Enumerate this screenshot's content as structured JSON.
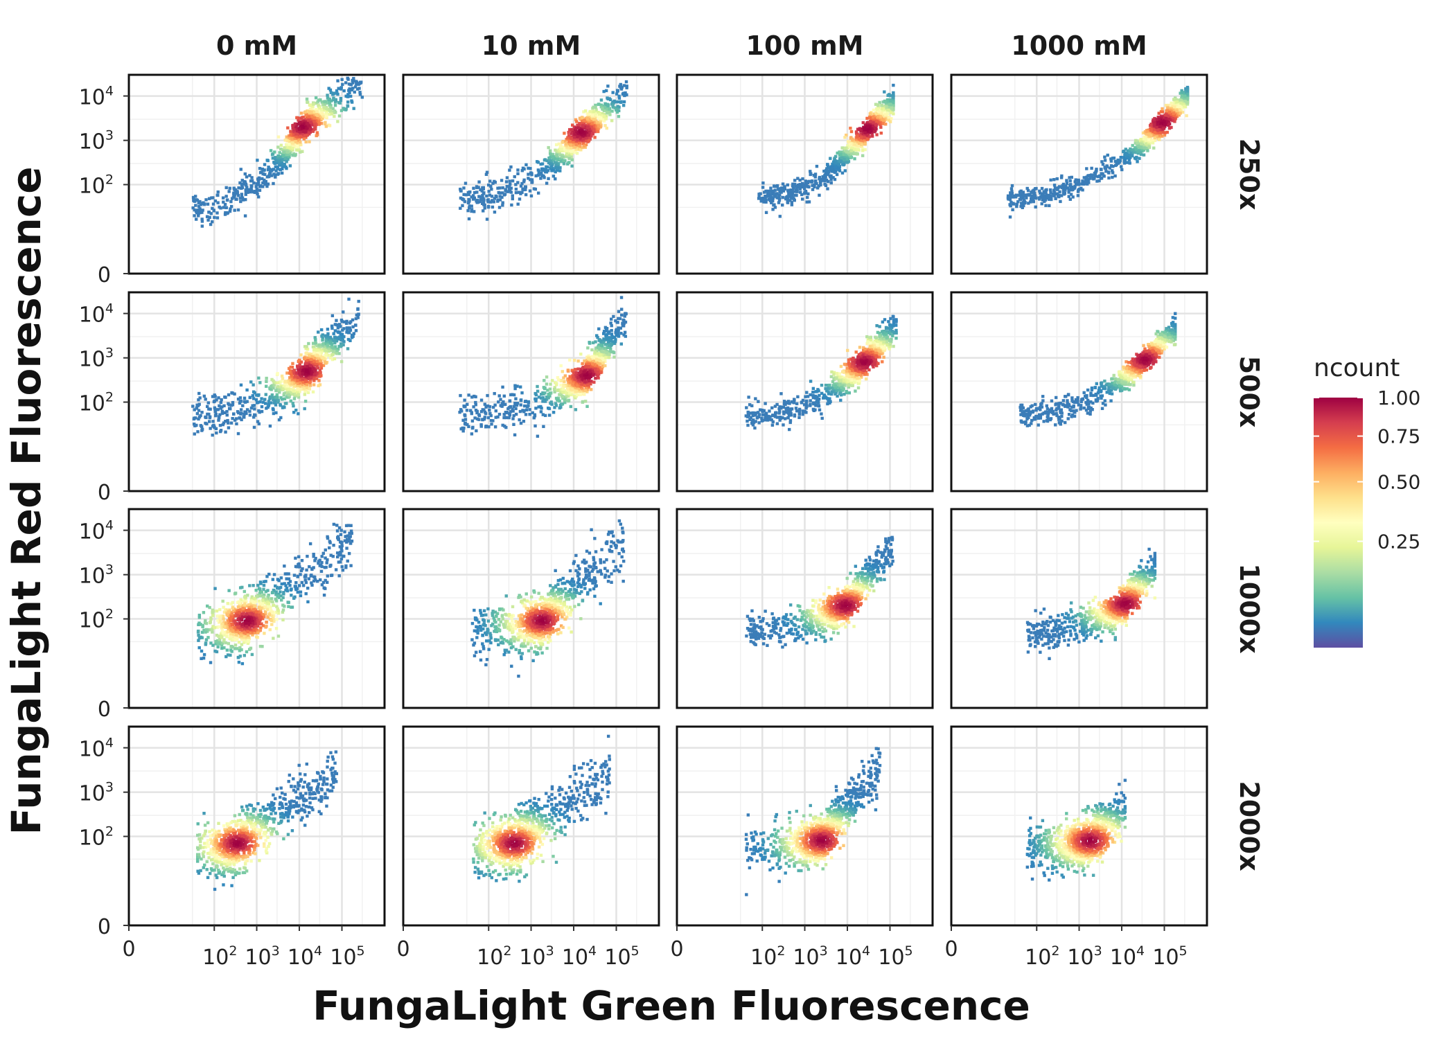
{
  "chart_data": {
    "type": "heatmap",
    "subtype": "hexbin-facet-grid",
    "xlabel": "FungaLight Green Fluorescence",
    "ylabel": "FungaLight Red Fluorescence",
    "x_scale": "pseudo-log",
    "y_scale": "pseudo-log",
    "xlim": [
      0,
      1000000
    ],
    "ylim": [
      0,
      30000
    ],
    "x_ticks": [
      {
        "value": 0,
        "base": "0",
        "exp": ""
      },
      {
        "value": 100,
        "base": "10",
        "exp": "2"
      },
      {
        "value": 1000,
        "base": "10",
        "exp": "3"
      },
      {
        "value": 10000,
        "base": "10",
        "exp": "4"
      },
      {
        "value": 100000,
        "base": "10",
        "exp": "5"
      }
    ],
    "y_ticks": [
      {
        "value": 0,
        "base": "0",
        "exp": ""
      },
      {
        "value": 100,
        "base": "10",
        "exp": "2"
      },
      {
        "value": 1000,
        "base": "10",
        "exp": "3"
      },
      {
        "value": 10000,
        "base": "10",
        "exp": "4"
      }
    ],
    "col_facets": [
      "0 mM",
      "10 mM",
      "100 mM",
      "1000 mM"
    ],
    "row_facets": [
      "250x",
      "500x",
      "1000x",
      "2000x"
    ],
    "grid": true,
    "legend": {
      "title": "ncount",
      "position": "right",
      "breaks": [
        "1.00",
        "0.75",
        "0.50",
        "0.25"
      ],
      "break_values": [
        1.0,
        0.75,
        0.5,
        0.25
      ],
      "colorscale": [
        "#5e4fa2",
        "#3288bd",
        "#66c2a5",
        "#abdda4",
        "#e6f598",
        "#ffffbf",
        "#fee08b",
        "#fdae61",
        "#f46d43",
        "#d53e4f",
        "#9e0142"
      ]
    },
    "panels": [
      {
        "row": "250x",
        "col": "0 mM",
        "x_range": [
          30,
          300000
        ],
        "y_range": [
          8,
          20000
        ],
        "peak": [
          12000,
          2000
        ],
        "spread": 0.18
      },
      {
        "row": "250x",
        "col": "10 mM",
        "x_range": [
          20,
          180000
        ],
        "y_range": [
          0,
          13000
        ],
        "peak": [
          15000,
          1500
        ],
        "spread": 0.18
      },
      {
        "row": "250x",
        "col": "100 mM",
        "x_range": [
          80,
          120000
        ],
        "y_range": [
          0,
          7000
        ],
        "peak": [
          30000,
          1800
        ],
        "spread": 0.14
      },
      {
        "row": "250x",
        "col": "1000 mM",
        "x_range": [
          20,
          350000
        ],
        "y_range": [
          0,
          10000
        ],
        "peak": [
          90000,
          2500
        ],
        "spread": 0.12
      },
      {
        "row": "500x",
        "col": "0 mM",
        "x_range": [
          30,
          250000
        ],
        "y_range": [
          0,
          9000
        ],
        "peak": [
          15000,
          500
        ],
        "spread": 0.25
      },
      {
        "row": "500x",
        "col": "10 mM",
        "x_range": [
          20,
          170000
        ],
        "y_range": [
          0,
          8000
        ],
        "peak": [
          20000,
          400
        ],
        "spread": 0.22
      },
      {
        "row": "500x",
        "col": "100 mM",
        "x_range": [
          40,
          140000
        ],
        "y_range": [
          0,
          5000
        ],
        "peak": [
          25000,
          800
        ],
        "spread": 0.16
      },
      {
        "row": "500x",
        "col": "1000 mM",
        "x_range": [
          40,
          180000
        ],
        "y_range": [
          0,
          4500
        ],
        "peak": [
          35000,
          900
        ],
        "spread": 0.14
      },
      {
        "row": "1000x",
        "col": "0 mM",
        "x_range": [
          40,
          180000
        ],
        "y_range": [
          0,
          6000
        ],
        "peak": [
          600,
          90
        ],
        "spread": 0.3
      },
      {
        "row": "1000x",
        "col": "10 mM",
        "x_range": [
          40,
          150000
        ],
        "y_range": [
          0,
          4500
        ],
        "peak": [
          1800,
          90
        ],
        "spread": 0.3
      },
      {
        "row": "1000x",
        "col": "100 mM",
        "x_range": [
          40,
          120000
        ],
        "y_range": [
          0,
          4000
        ],
        "peak": [
          9000,
          200
        ],
        "spread": 0.2
      },
      {
        "row": "1000x",
        "col": "1000 mM",
        "x_range": [
          60,
          60000
        ],
        "y_range": [
          0,
          1600
        ],
        "peak": [
          12000,
          220
        ],
        "spread": 0.2
      },
      {
        "row": "2000x",
        "col": "0 mM",
        "x_range": [
          40,
          80000
        ],
        "y_range": [
          0,
          2500
        ],
        "peak": [
          350,
          70
        ],
        "spread": 0.32
      },
      {
        "row": "2000x",
        "col": "10 mM",
        "x_range": [
          40,
          70000
        ],
        "y_range": [
          0,
          2800
        ],
        "peak": [
          400,
          70
        ],
        "spread": 0.32
      },
      {
        "row": "2000x",
        "col": "100 mM",
        "x_range": [
          40,
          60000
        ],
        "y_range": [
          0,
          3500
        ],
        "peak": [
          2500,
          80
        ],
        "spread": 0.28
      },
      {
        "row": "2000x",
        "col": "1000 mM",
        "x_range": [
          60,
          12000
        ],
        "y_range": [
          0,
          400
        ],
        "peak": [
          1800,
          80
        ],
        "spread": 0.28
      }
    ]
  }
}
